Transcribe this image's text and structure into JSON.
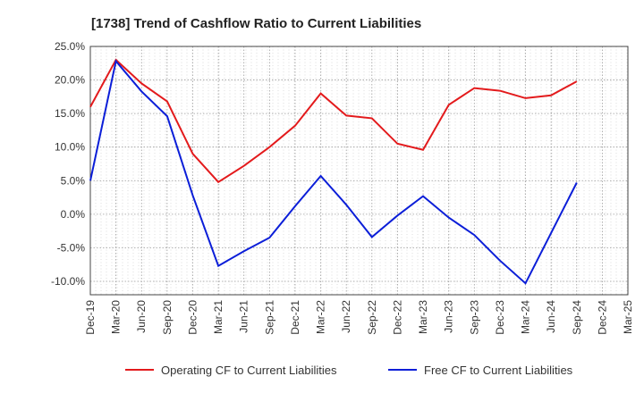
{
  "chart_data": {
    "type": "line",
    "title": "[1738]  Trend of Cashflow Ratio to Current Liabilities",
    "xlabel": "",
    "ylabel": "",
    "x": [
      "Dec-19",
      "Mar-20",
      "Jun-20",
      "Sep-20",
      "Dec-20",
      "Mar-21",
      "Jun-21",
      "Sep-21",
      "Dec-21",
      "Mar-22",
      "Jun-22",
      "Sep-22",
      "Dec-22",
      "Mar-23",
      "Jun-23",
      "Sep-23",
      "Dec-23",
      "Mar-24",
      "Jun-24",
      "Sep-24",
      "Dec-24",
      "Mar-25"
    ],
    "ylim": [
      -12,
      25
    ],
    "yticks": [
      -10,
      -5,
      0,
      5,
      10,
      15,
      20,
      25
    ],
    "ytick_labels": [
      "-10.0%",
      "-5.0%",
      "0.0%",
      "5.0%",
      "10.0%",
      "15.0%",
      "20.0%",
      "25.0%"
    ],
    "grid": true,
    "legend_position": "bottom",
    "series": [
      {
        "name": "Operating CF to Current Liabilities",
        "color": "#e31a1c",
        "values": [
          16.0,
          23.0,
          19.5,
          16.8,
          9.0,
          4.8,
          7.2,
          10.0,
          13.2,
          18.0,
          14.7,
          14.3,
          10.5,
          9.6,
          16.3,
          18.8,
          18.4,
          17.3,
          17.7,
          19.8,
          null,
          null
        ]
      },
      {
        "name": "Free CF to Current Liabilities",
        "color": "#0b1ed8",
        "values": [
          5.0,
          22.8,
          18.3,
          14.6,
          2.8,
          -7.7,
          -5.5,
          -3.5,
          1.2,
          5.7,
          1.4,
          -3.4,
          -0.2,
          2.7,
          -0.5,
          -3.1,
          -6.9,
          -10.3,
          -2.8,
          4.7,
          null,
          null
        ]
      }
    ]
  }
}
